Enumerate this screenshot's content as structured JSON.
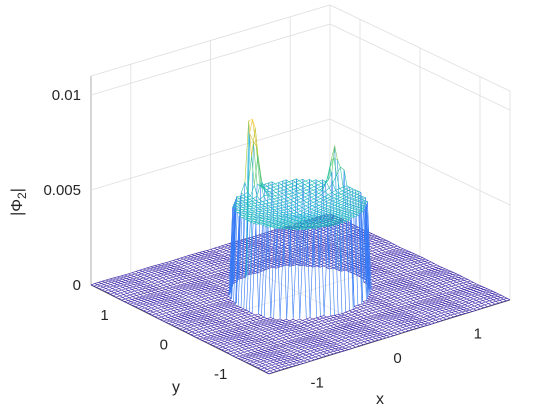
{
  "chart_data": {
    "type": "surface-mesh",
    "title": "",
    "xlabel": "x",
    "ylabel": "y",
    "zlabel": "|Φ₂|",
    "zlabel_parts": {
      "pre": "|Φ",
      "sub": "2",
      "post": "|"
    },
    "xlim": [
      -1.5,
      1.5
    ],
    "ylim": [
      -1.5,
      1.5
    ],
    "zlim": [
      0,
      0.011
    ],
    "x_ticks": [
      {
        "value": -1,
        "label": "-1"
      },
      {
        "value": 0,
        "label": "0"
      },
      {
        "value": 1,
        "label": "1"
      }
    ],
    "y_ticks": [
      {
        "value": -1,
        "label": "-1"
      },
      {
        "value": 0,
        "label": "0"
      },
      {
        "value": 1,
        "label": "1"
      }
    ],
    "z_ticks": [
      {
        "value": 0,
        "label": "0"
      },
      {
        "value": 0.005,
        "label": "0.005"
      },
      {
        "value": 0.01,
        "label": "0.01"
      }
    ],
    "surface": {
      "shape": "disc",
      "disc_radius": 0.68,
      "rim_height": 0.0046,
      "floor_height": 0.0,
      "peaks": [
        {
          "angle_deg": 105,
          "height": 0.0095
        },
        {
          "angle_deg": 20,
          "height": 0.0067
        }
      ]
    },
    "colormap": "parula",
    "grid": true
  }
}
